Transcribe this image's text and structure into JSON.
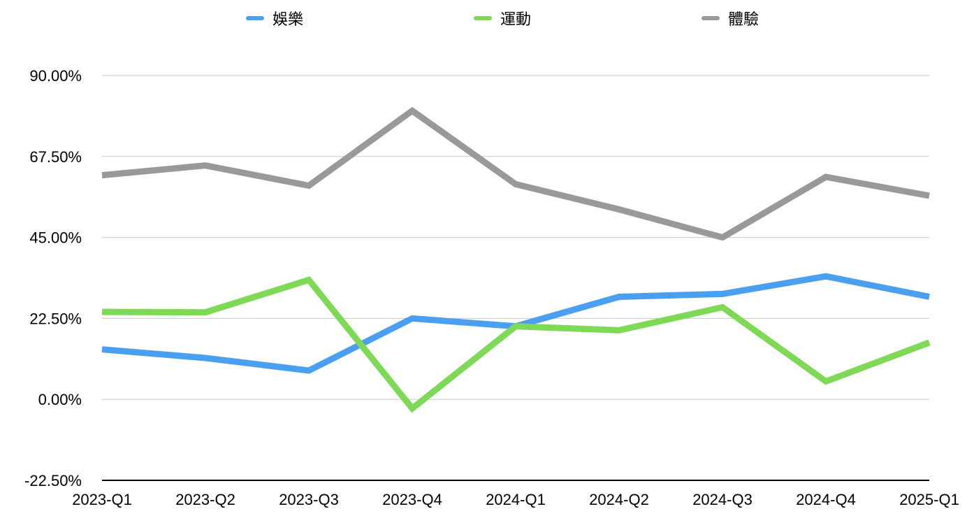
{
  "chart_data": {
    "type": "line",
    "categories": [
      "2023-Q1",
      "2023-Q2",
      "2023-Q3",
      "2023-Q4",
      "2024-Q1",
      "2024-Q2",
      "2024-Q3",
      "2024-Q4",
      "2025-Q1"
    ],
    "series": [
      {
        "name": "娛樂",
        "color": "#4A9FF0",
        "values": [
          13.9,
          11.5,
          8.0,
          22.5,
          20.3,
          28.5,
          29.3,
          34.2,
          28.5
        ]
      },
      {
        "name": "運動",
        "color": "#7ED957",
        "values": [
          24.3,
          24.2,
          33.2,
          -2.5,
          20.3,
          19.2,
          25.6,
          5.0,
          15.8
        ]
      },
      {
        "name": "體驗",
        "color": "#999999",
        "values": [
          62.3,
          65.0,
          59.4,
          80.2,
          59.8,
          52.8,
          45.0,
          61.8,
          56.6
        ]
      }
    ],
    "yticks": [
      "90.00%",
      "67.50%",
      "45.00%",
      "22.50%",
      "0.00%",
      "-22.50%"
    ],
    "ytick_values": [
      90,
      67.5,
      45,
      22.5,
      0,
      -22.5
    ],
    "ylim": [
      -22.5,
      90
    ],
    "grid": true,
    "legend_position": "top"
  }
}
